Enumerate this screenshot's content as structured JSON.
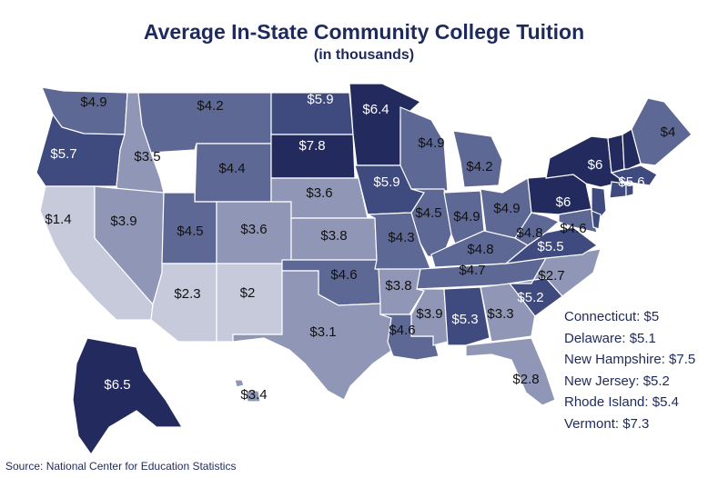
{
  "title": "Average In-State Community College Tuition",
  "subtitle": "(in thousands)",
  "source": "Source: National Center for Education Statistics",
  "colors": {
    "dark": "#232b5e",
    "mid_dark": "#3f4a7e",
    "mid": "#5e6894",
    "light": "#9096b5",
    "lightest": "#c7cadb",
    "title": "#1f2a5c"
  },
  "states": [
    {
      "id": "WA",
      "label": "$4.9",
      "value": 4.9
    },
    {
      "id": "OR",
      "label": "$5.7",
      "value": 5.7
    },
    {
      "id": "CA",
      "label": "$1.4",
      "value": 1.4
    },
    {
      "id": "ID",
      "label": "$3.5",
      "value": 3.5
    },
    {
      "id": "NV",
      "label": "$3.9",
      "value": 3.9
    },
    {
      "id": "MT",
      "label": "$4.2",
      "value": 4.2
    },
    {
      "id": "WY",
      "label": "$4.4",
      "value": 4.4
    },
    {
      "id": "UT",
      "label": "$4.5",
      "value": 4.5
    },
    {
      "id": "CO",
      "label": "$3.6",
      "value": 3.6
    },
    {
      "id": "AZ",
      "label": "$2.3",
      "value": 2.3
    },
    {
      "id": "NM",
      "label": "$2",
      "value": 2.0
    },
    {
      "id": "ND",
      "label": "$5.9",
      "value": 5.9
    },
    {
      "id": "SD",
      "label": "$7.8",
      "value": 7.8
    },
    {
      "id": "NE",
      "label": "$3.6",
      "value": 3.6
    },
    {
      "id": "KS",
      "label": "$3.8",
      "value": 3.8
    },
    {
      "id": "OK",
      "label": "$4.6",
      "value": 4.6
    },
    {
      "id": "TX",
      "label": "$3.1",
      "value": 3.1
    },
    {
      "id": "MN",
      "label": "$6.4",
      "value": 6.4
    },
    {
      "id": "IA",
      "label": "$5.9",
      "value": 5.9
    },
    {
      "id": "MO",
      "label": "$4.3",
      "value": 4.3
    },
    {
      "id": "AR",
      "label": "$3.8",
      "value": 3.8
    },
    {
      "id": "LA",
      "label": "$4.6",
      "value": 4.6
    },
    {
      "id": "WI",
      "label": "$4.9",
      "value": 4.9
    },
    {
      "id": "IL",
      "label": "$4.5",
      "value": 4.5
    },
    {
      "id": "MI",
      "label": "$4.2",
      "value": 4.2
    },
    {
      "id": "IN",
      "label": "$4.9",
      "value": 4.9
    },
    {
      "id": "OH",
      "label": "$4.9",
      "value": 4.9
    },
    {
      "id": "KY",
      "label": "$4.8",
      "value": 4.8
    },
    {
      "id": "TN",
      "label": "$4.7",
      "value": 4.7
    },
    {
      "id": "MS",
      "label": "$3.9",
      "value": 3.9
    },
    {
      "id": "AL",
      "label": "$5.3",
      "value": 5.3
    },
    {
      "id": "GA",
      "label": "$3.3",
      "value": 3.3
    },
    {
      "id": "FL",
      "label": "$2.8",
      "value": 2.8
    },
    {
      "id": "SC",
      "label": "$5.2",
      "value": 5.2
    },
    {
      "id": "NC",
      "label": "$2.7",
      "value": 2.7
    },
    {
      "id": "VA",
      "label": "$5.5",
      "value": 5.5
    },
    {
      "id": "WV",
      "label": "$4.8",
      "value": 4.8
    },
    {
      "id": "PA",
      "label": "$6",
      "value": 6.0
    },
    {
      "id": "NY",
      "label": "$6",
      "value": 6.0
    },
    {
      "id": "MD",
      "label": "$4.6",
      "value": 4.6
    },
    {
      "id": "MA",
      "label": "$5.6",
      "value": 5.6
    },
    {
      "id": "ME",
      "label": "$4",
      "value": 4.0
    },
    {
      "id": "VT",
      "label": "",
      "value": 7.3
    },
    {
      "id": "NH",
      "label": "",
      "value": 7.5
    },
    {
      "id": "NJ",
      "label": "",
      "value": 5.2
    },
    {
      "id": "DE",
      "label": "",
      "value": 5.1
    },
    {
      "id": "CT",
      "label": "",
      "value": 5.0
    },
    {
      "id": "RI",
      "label": "",
      "value": 5.4
    },
    {
      "id": "AK",
      "label": "$6.5",
      "value": 6.5
    },
    {
      "id": "HI",
      "label": "$3.4",
      "value": 3.4
    }
  ],
  "legend": [
    "Connecticut: $5",
    "Delaware: $5.1",
    "New Hampshire: $7.5",
    "New Jersey: $5.2",
    "Rhode Island: $5.4",
    "Vermont: $7.3"
  ]
}
